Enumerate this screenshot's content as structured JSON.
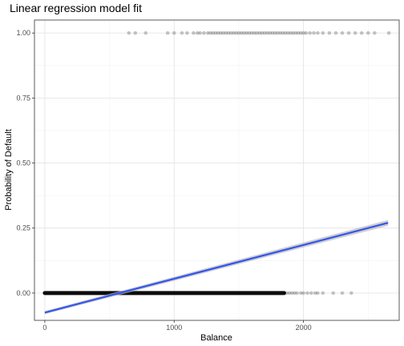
{
  "chart_data": {
    "type": "scatter",
    "title": "Linear regression model fit",
    "xlabel": "Balance",
    "ylabel": "Probability of Default",
    "xlim": [
      -80,
      2740
    ],
    "ylim": [
      -0.105,
      1.05
    ],
    "x_ticks": [
      0,
      1000,
      2000
    ],
    "x_tick_labels": [
      "0",
      "1000",
      "2000"
    ],
    "y_ticks": [
      0.0,
      0.25,
      0.5,
      0.75,
      1.0
    ],
    "y_tick_labels": [
      "0.00",
      "0.25",
      "0.50",
      "0.75",
      "1.00"
    ],
    "grid": true,
    "colors": {
      "points": "#000000",
      "fit_line": "#3355ee",
      "confidence_band": "#bbbbbb",
      "grid_major": "#e5e5e5",
      "grid_minor": "#f2f2f2",
      "panel_border": "#333333"
    },
    "series": [
      {
        "kind": "points",
        "y": 0,
        "x_dense_range": [
          0,
          1850
        ],
        "x_sparse": [
          1870,
          1890,
          1910,
          1930,
          1950,
          1980,
          2000,
          2030,
          2060,
          2090,
          2110,
          2150,
          2230,
          2300,
          2370
        ]
      },
      {
        "kind": "points",
        "y": 1,
        "x": [
          650,
          700,
          780,
          950,
          1000,
          1060,
          1100,
          1150,
          1180,
          1200,
          1230,
          1260,
          1280,
          1300,
          1320,
          1340,
          1360,
          1380,
          1400,
          1420,
          1440,
          1460,
          1480,
          1500,
          1520,
          1540,
          1560,
          1580,
          1600,
          1620,
          1640,
          1660,
          1680,
          1700,
          1720,
          1740,
          1760,
          1780,
          1800,
          1820,
          1840,
          1860,
          1880,
          1900,
          1920,
          1940,
          1960,
          1980,
          2000,
          2020,
          2050,
          2080,
          2110,
          2150,
          2200,
          2250,
          2300,
          2350,
          2400,
          2450,
          2500,
          2550,
          2660
        ]
      },
      {
        "kind": "line",
        "x": [
          0,
          2654
        ],
        "y": [
          -0.075,
          0.27
        ],
        "band_halfwidth": [
          0.006,
          0.011
        ]
      }
    ]
  }
}
